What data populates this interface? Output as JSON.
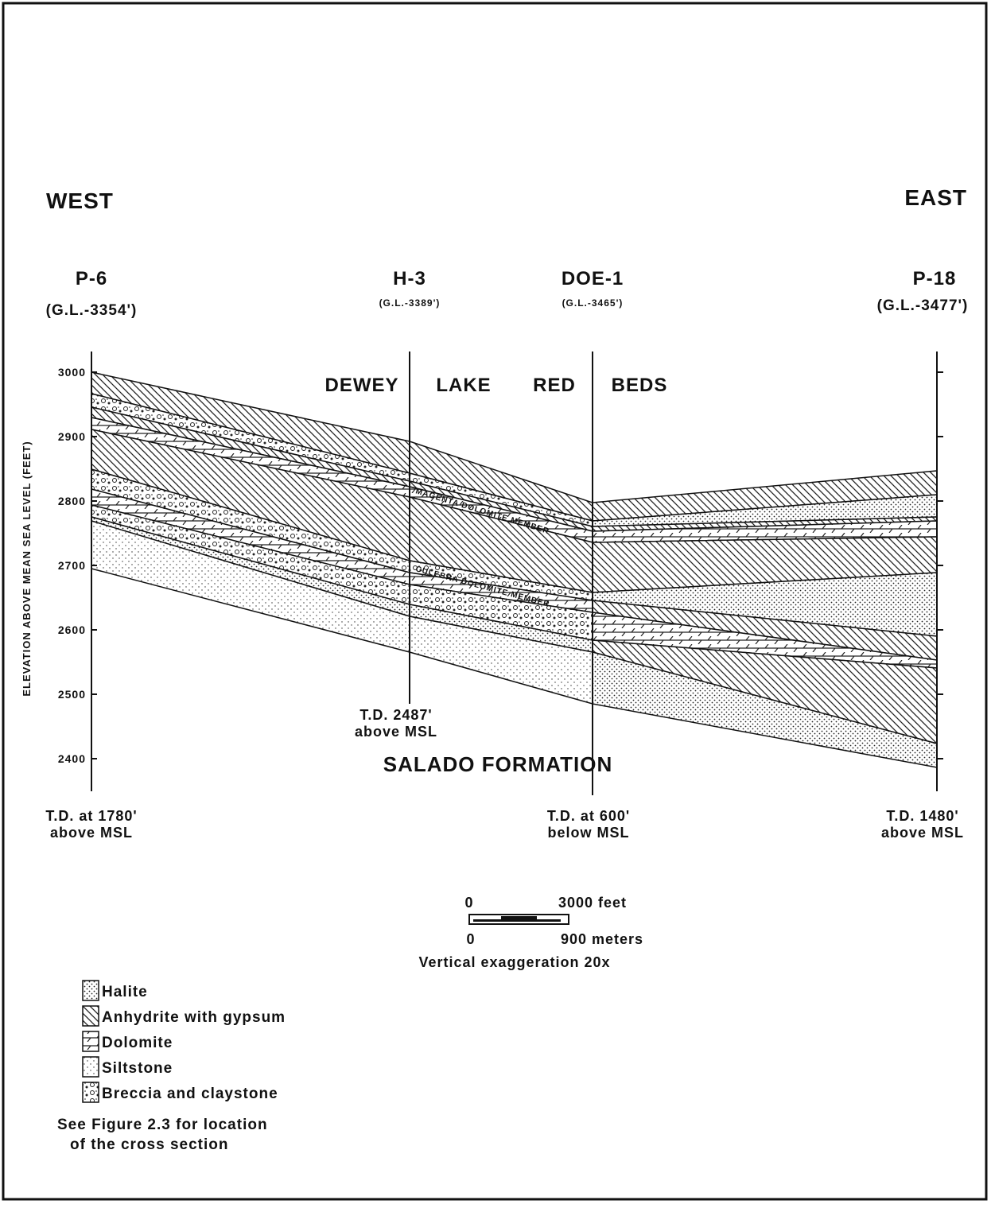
{
  "header": {
    "west": "WEST",
    "east": "EAST"
  },
  "wells": [
    {
      "name": "P-6",
      "elevation": "(G.L.-3354')",
      "total_depth": "T.D. at 1780'",
      "total_depth_ref": "above MSL"
    },
    {
      "name": "H-3",
      "elevation": "(G.L.-3389')",
      "total_depth": "T.D. 2487'",
      "total_depth_ref": "above MSL"
    },
    {
      "name": "DOE-1",
      "elevation": "(G.L.-3465')",
      "total_depth": "T.D. at 600'",
      "total_depth_ref": "below MSL"
    },
    {
      "name": "P-18",
      "elevation": "(G.L.-3477')",
      "total_depth": "T.D. 1480'",
      "total_depth_ref": "above MSL"
    }
  ],
  "axis": {
    "label": "ELEVATION ABOVE MEAN SEA LEVEL (FEET)",
    "ticks": [
      3000,
      2900,
      2800,
      2700,
      2600,
      2500,
      2400
    ]
  },
  "units": {
    "dewey": [
      "DEWEY",
      "LAKE",
      "RED",
      "BEDS"
    ],
    "magenta": "MAGENTA DOLOMITE MEMBER",
    "culebra": "CULEBRA DOLOMITE MEMBER",
    "salado": "SALADO FORMATION"
  },
  "scale": {
    "feet_zero": "0",
    "feet": "3000 feet",
    "meters_zero": "0",
    "meters": "900 meters",
    "exaggeration": "Vertical exaggeration 20x"
  },
  "legend": [
    "Halite",
    "Anhydrite with gypsum",
    "Dolomite",
    "Siltstone",
    "Breccia and claystone"
  ],
  "note": [
    "See Figure 2.3 for location",
    "of the cross section"
  ]
}
